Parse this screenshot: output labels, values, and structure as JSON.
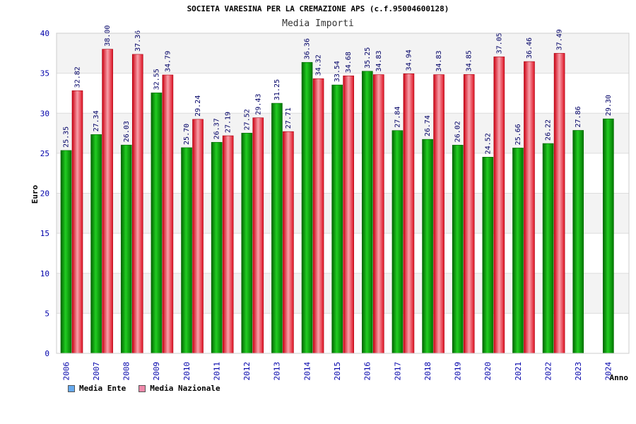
{
  "chart_data": {
    "type": "bar",
    "title": "SOCIETA VARESINA PER LA CREMAZIONE APS (c.f.95004600128)",
    "subtitle": "Media Importi",
    "xlabel": "Anno",
    "ylabel": "Euro",
    "ylim": [
      0,
      40
    ],
    "yticks": [
      0,
      5,
      10,
      15,
      20,
      25,
      30,
      35,
      40
    ],
    "grid": "horizontal-bands",
    "legend_position": "bottom-left",
    "categories": [
      "2006",
      "2007",
      "2008",
      "2009",
      "2010",
      "2011",
      "2012",
      "2013",
      "2014",
      "2015",
      "2016",
      "2017",
      "2018",
      "2019",
      "2020",
      "2021",
      "2022",
      "2023",
      "2024"
    ],
    "series": [
      {
        "name": "Media Ente",
        "color": "#11aa11",
        "legend_color": "#66aaee",
        "values": [
          25.35,
          27.34,
          26.03,
          32.55,
          25.7,
          26.37,
          27.52,
          31.25,
          36.36,
          33.54,
          35.25,
          27.84,
          26.74,
          26.02,
          24.52,
          25.66,
          26.22,
          27.86,
          29.3
        ],
        "labels": [
          "25.35",
          "27.34",
          "26.03",
          "32.55",
          "25.70",
          "26.37",
          "27.52",
          "31.25",
          "36.36",
          "33.54",
          "35.25",
          "27.84",
          "26.74",
          "26.02",
          "24.52",
          "25.66",
          "26.22",
          "27.86",
          "29.30"
        ]
      },
      {
        "name": "Media Nazionale",
        "color": "#ee2233",
        "legend_color": "#ee88aa",
        "values": [
          32.82,
          38.0,
          37.36,
          34.79,
          29.24,
          27.19,
          29.43,
          27.71,
          34.32,
          34.68,
          34.83,
          34.94,
          34.83,
          34.85,
          37.05,
          36.46,
          37.49,
          null,
          null
        ],
        "labels": [
          "32.82",
          "38.00",
          "37.36",
          "34.79",
          "29.24",
          "27.19",
          "29.43",
          "27.71",
          "34.32",
          "34.68",
          "34.83",
          "34.94",
          "34.83",
          "34.85",
          "37.05",
          "36.46",
          "37.49",
          "",
          ""
        ]
      }
    ]
  }
}
